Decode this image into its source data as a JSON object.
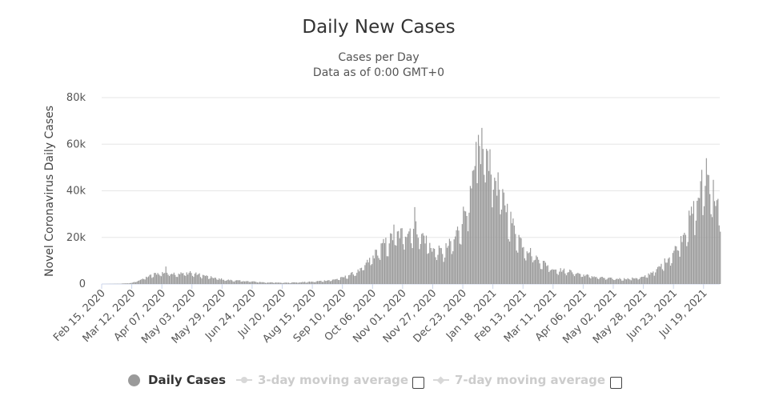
{
  "chart_data": {
    "type": "bar",
    "title": "Daily New Cases",
    "subtitle_line1": "Cases per Day",
    "subtitle_line2": "Data as of 0:00 GMT+0",
    "ylabel": "Novel Coronavirus Daily Cases",
    "ylim": [
      0,
      80000
    ],
    "y_ticks": [
      0,
      20000,
      40000,
      60000,
      80000
    ],
    "y_tick_labels": [
      "0",
      "20k",
      "40k",
      "60k",
      "80k"
    ],
    "x_start": "2020-02-15",
    "x_end": "2021-08-02",
    "x_tick_dates": [
      "2020-02-15",
      "2020-03-12",
      "2020-04-07",
      "2020-05-03",
      "2020-05-29",
      "2020-06-24",
      "2020-07-20",
      "2020-08-15",
      "2020-09-10",
      "2020-10-06",
      "2020-11-01",
      "2020-11-27",
      "2020-12-23",
      "2021-01-18",
      "2021-02-13",
      "2021-03-11",
      "2021-04-06",
      "2021-05-02",
      "2021-05-28",
      "2021-06-23",
      "2021-07-19"
    ],
    "x_tick_labels": [
      "Feb 15, 2020",
      "Mar 12, 2020",
      "Apr 07, 2020",
      "May 03, 2020",
      "May 29, 2020",
      "Jun 24, 2020",
      "Jul 20, 2020",
      "Aug 15, 2020",
      "Sep 10, 2020",
      "Oct 06, 2020",
      "Nov 01, 2020",
      "Nov 27, 2020",
      "Dec 23, 2020",
      "Jan 18, 2021",
      "Feb 13, 2021",
      "Mar 11, 2021",
      "Apr 06, 2021",
      "May 02, 2021",
      "May 28, 2021",
      "Jun 23, 2021",
      "Jul 19, 2021"
    ],
    "series": [
      {
        "name": "Daily Cases",
        "color": "#9a9a9a",
        "trend": [
          [
            "2020-02-15",
            0
          ],
          [
            "2020-03-01",
            100
          ],
          [
            "2020-03-12",
            500
          ],
          [
            "2020-03-22",
            2500
          ],
          [
            "2020-04-01",
            4500
          ],
          [
            "2020-04-10",
            5000
          ],
          [
            "2020-04-20",
            4500
          ],
          [
            "2020-05-01",
            4800
          ],
          [
            "2020-05-10",
            4000
          ],
          [
            "2020-05-20",
            2800
          ],
          [
            "2020-06-01",
            1800
          ],
          [
            "2020-06-20",
            1200
          ],
          [
            "2020-07-05",
            700
          ],
          [
            "2020-07-20",
            600
          ],
          [
            "2020-08-01",
            700
          ],
          [
            "2020-08-15",
            1000
          ],
          [
            "2020-09-01",
            1800
          ],
          [
            "2020-09-10",
            2800
          ],
          [
            "2020-09-25",
            6000
          ],
          [
            "2020-10-06",
            12000
          ],
          [
            "2020-10-15",
            17000
          ],
          [
            "2020-10-25",
            21000
          ],
          [
            "2020-11-01",
            22000
          ],
          [
            "2020-11-10",
            25000
          ],
          [
            "2020-11-18",
            21000
          ],
          [
            "2020-11-27",
            15000
          ],
          [
            "2020-12-05",
            14000
          ],
          [
            "2020-12-15",
            19000
          ],
          [
            "2020-12-23",
            30000
          ],
          [
            "2020-12-30",
            40000
          ],
          [
            "2021-01-05",
            55000
          ],
          [
            "2021-01-10",
            62000
          ],
          [
            "2021-01-15",
            55000
          ],
          [
            "2021-01-20",
            45000
          ],
          [
            "2021-01-28",
            35000
          ],
          [
            "2021-02-05",
            24000
          ],
          [
            "2021-02-13",
            17000
          ],
          [
            "2021-02-25",
            11000
          ],
          [
            "2021-03-11",
            6500
          ],
          [
            "2021-03-25",
            5500
          ],
          [
            "2021-04-06",
            4000
          ],
          [
            "2021-04-20",
            2800
          ],
          [
            "2021-05-02",
            2300
          ],
          [
            "2021-05-15",
            2300
          ],
          [
            "2021-05-28",
            3000
          ],
          [
            "2021-06-10",
            7000
          ],
          [
            "2021-06-23",
            14000
          ],
          [
            "2021-07-01",
            22000
          ],
          [
            "2021-07-10",
            32000
          ],
          [
            "2021-07-17",
            42000
          ],
          [
            "2021-07-21",
            48000
          ],
          [
            "2021-07-25",
            44000
          ],
          [
            "2021-08-02",
            30000
          ]
        ],
        "peaks": [
          [
            "2020-04-10",
            7500
          ],
          [
            "2020-05-01",
            5500
          ],
          [
            "2020-10-24",
            25500
          ],
          [
            "2020-11-11",
            33000
          ],
          [
            "2021-01-05",
            64000
          ],
          [
            "2021-01-08",
            67000
          ],
          [
            "2021-01-03",
            61000
          ],
          [
            "2021-01-12",
            58000
          ],
          [
            "2021-07-21",
            54000
          ],
          [
            "2021-07-17",
            49000
          ]
        ]
      },
      {
        "name": "3-day moving average",
        "visible": false
      },
      {
        "name": "7-day moving average",
        "visible": false
      }
    ],
    "grid": true,
    "legend_position": "bottom-center"
  },
  "legend": {
    "daily_cases": "Daily Cases",
    "ma3": "3-day moving average",
    "ma7": "7-day moving average"
  }
}
